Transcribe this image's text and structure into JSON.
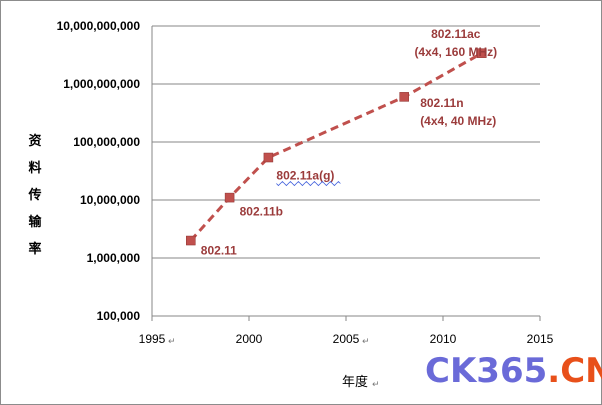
{
  "chart_data": {
    "type": "line",
    "title": "",
    "ylabel": "资料传输率",
    "xlabel": "年度",
    "yscale": "log",
    "ylim": [
      100000,
      10000000000
    ],
    "xlim": [
      1995,
      2015
    ],
    "xticks": [
      1995,
      2000,
      2005,
      2010,
      2015
    ],
    "yticks": [
      "100,000",
      "1,000,000",
      "10,000,000",
      "100,000,000",
      "1,000,000,000",
      "10,000,000,000"
    ],
    "ytick_values": [
      100000,
      1000000,
      10000000,
      100000000,
      1000000000,
      10000000000
    ],
    "grid": "horizontal",
    "line_color": "#c0504d",
    "line_style": "dashed",
    "marker": "square",
    "series": [
      {
        "points": [
          {
            "x": 1997,
            "y": 2000000,
            "label": [
              "802.11"
            ]
          },
          {
            "x": 1999,
            "y": 11000000,
            "label": [
              "802.11b"
            ]
          },
          {
            "x": 2001,
            "y": 54000000,
            "label": [
              "802.11a(g)"
            ]
          },
          {
            "x": 2008,
            "y": 600000000,
            "label": [
              "802.11n",
              "(4x4, 40 MHz)"
            ]
          },
          {
            "x": 2012,
            "y": 3400000000,
            "label": [
              "802.11ac",
              "(4x4, 160 MHz)"
            ]
          }
        ]
      }
    ]
  },
  "watermark": {
    "part1": "CK365",
    "part2": ".CN",
    "color1": "#6a6ad8",
    "color2": "#e8501a"
  }
}
